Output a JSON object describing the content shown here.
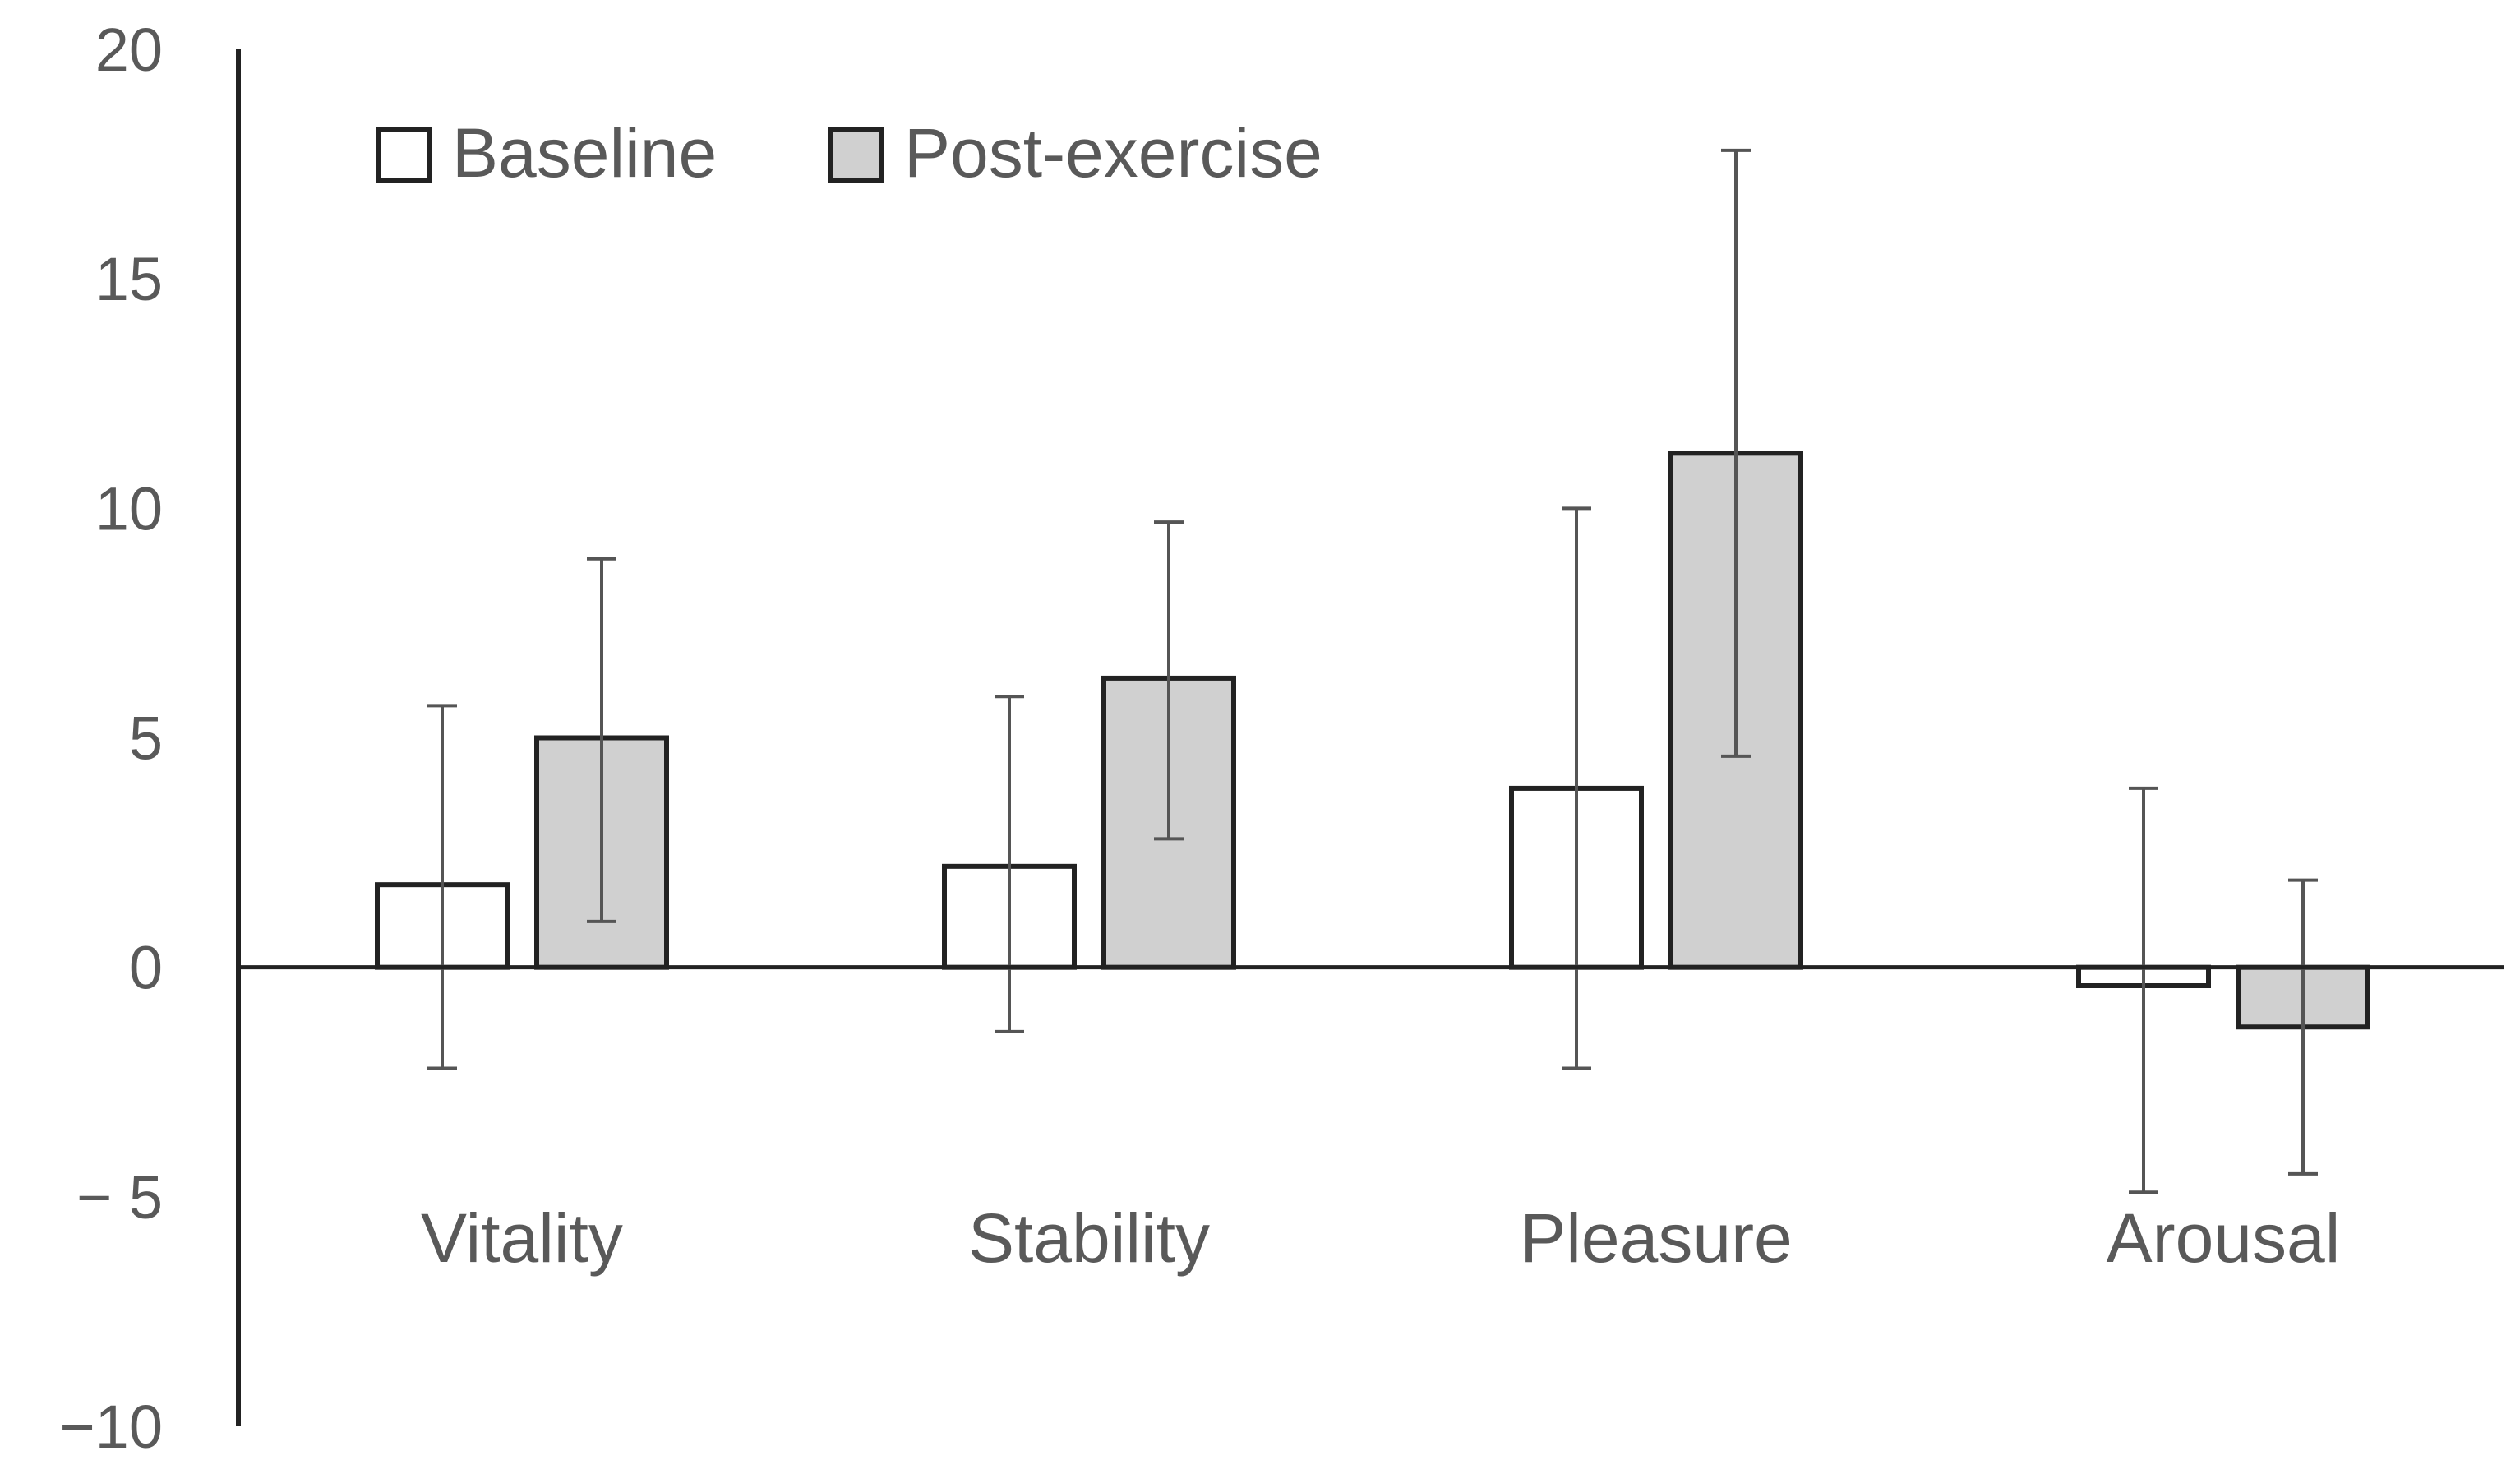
{
  "chart_data": {
    "type": "bar",
    "title": "",
    "xlabel": "",
    "ylabel": "",
    "ylim": [
      -10,
      20
    ],
    "yticks": [
      20,
      15,
      10,
      5,
      0,
      -5,
      -10
    ],
    "ytick_labels": [
      "20",
      "15",
      "10",
      "5",
      "0",
      "− 5",
      "−10"
    ],
    "grid": false,
    "legend_position": "top-left",
    "categories": [
      "Vitality",
      "Stability",
      "Pleasure",
      "Arousal"
    ],
    "series": [
      {
        "name": "Baseline",
        "color": "#ffffff",
        "values": [
          1.8,
          2.2,
          3.9,
          -0.4
        ],
        "error_low": [
          -2.2,
          -1.4,
          -2.2,
          -4.9
        ],
        "error_high": [
          5.7,
          5.9,
          10.0,
          3.9
        ]
      },
      {
        "name": "Post-exercise",
        "color": "#d0d0d0",
        "values": [
          5.0,
          6.3,
          11.2,
          -1.3
        ],
        "error_low": [
          1.0,
          2.8,
          4.6,
          -4.5
        ],
        "error_high": [
          8.9,
          9.7,
          17.8,
          1.9
        ]
      }
    ]
  }
}
